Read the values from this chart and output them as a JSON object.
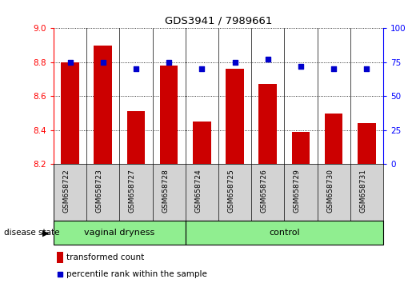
{
  "title": "GDS3941 / 7989661",
  "samples": [
    "GSM658722",
    "GSM658723",
    "GSM658727",
    "GSM658728",
    "GSM658724",
    "GSM658725",
    "GSM658726",
    "GSM658729",
    "GSM658730",
    "GSM658731"
  ],
  "bar_values": [
    8.8,
    8.9,
    8.51,
    8.78,
    8.45,
    8.76,
    8.67,
    8.39,
    8.5,
    8.44
  ],
  "percentile_values": [
    75,
    75,
    70,
    75,
    70,
    75,
    77,
    72,
    70,
    70
  ],
  "bar_color": "#cc0000",
  "percentile_color": "#0000cc",
  "ylim_left": [
    8.2,
    9.0
  ],
  "ylim_right": [
    0,
    100
  ],
  "yticks_left": [
    8.2,
    8.4,
    8.6,
    8.8,
    9.0
  ],
  "yticks_right": [
    0,
    25,
    50,
    75,
    100
  ],
  "group1_label": "vaginal dryness",
  "group2_label": "control",
  "group1_count": 4,
  "group2_count": 6,
  "legend_bar_label": "transformed count",
  "legend_pct_label": "percentile rank within the sample",
  "disease_state_label": "disease state",
  "group1_color": "#90ee90",
  "group2_color": "#90ee90",
  "xtick_bg_color": "#d3d3d3",
  "background_color": "#ffffff"
}
